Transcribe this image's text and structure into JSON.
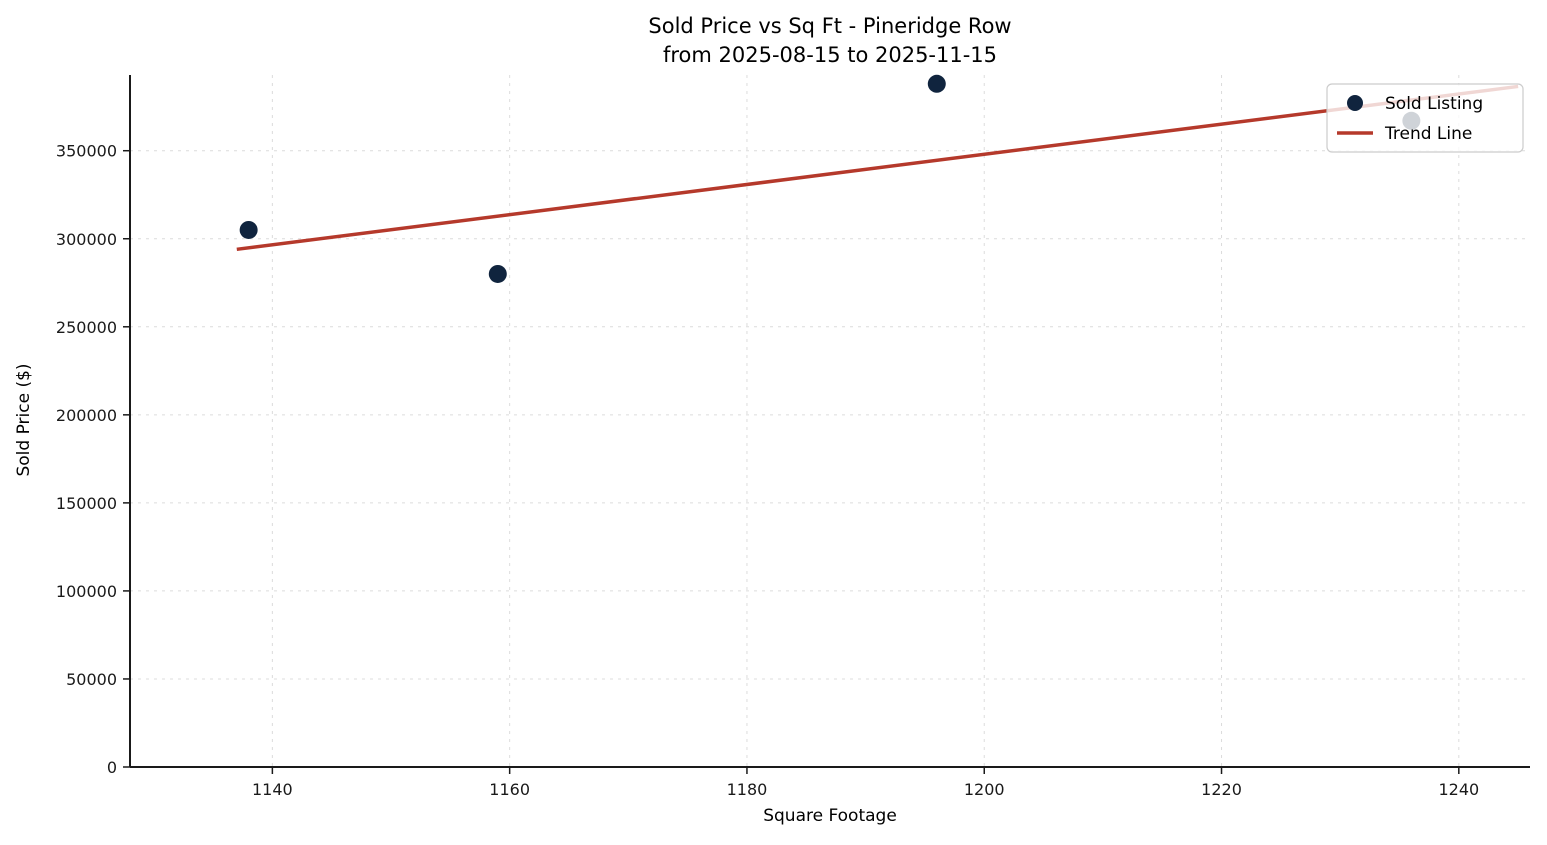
{
  "chart_data": {
    "type": "scatter",
    "title_line1": "Sold Price vs Sq Ft - Pineridge Row",
    "title_line2": "from 2025-08-15 to 2025-11-15",
    "xlabel": "Square Footage",
    "ylabel": "Sold Price ($)",
    "xlim": [
      1128,
      1246
    ],
    "ylim": [
      0,
      393000
    ],
    "x_ticks": [
      1140,
      1160,
      1180,
      1200,
      1220,
      1240
    ],
    "y_ticks": [
      0,
      50000,
      100000,
      150000,
      200000,
      250000,
      300000,
      350000
    ],
    "grid": true,
    "grid_style": "dashed",
    "series": [
      {
        "name": "Sold Listing",
        "kind": "scatter",
        "color": "#10243e",
        "points": [
          [
            1138,
            305000
          ],
          [
            1159,
            280000
          ],
          [
            1196,
            388000
          ],
          [
            1236,
            367000
          ]
        ]
      },
      {
        "name": "Trend Line",
        "kind": "line",
        "color": "#b5392b",
        "points": [
          [
            1137,
            294000
          ],
          [
            1245,
            386500
          ]
        ]
      }
    ],
    "legend": {
      "position": "upper right",
      "entries": [
        "Sold Listing",
        "Trend Line"
      ]
    }
  },
  "colors": {
    "point": "#10243e",
    "trend": "#b5392b",
    "grid": "#dcdcdc",
    "spine": "#1a1a1a",
    "legend_border": "#cccccc"
  }
}
